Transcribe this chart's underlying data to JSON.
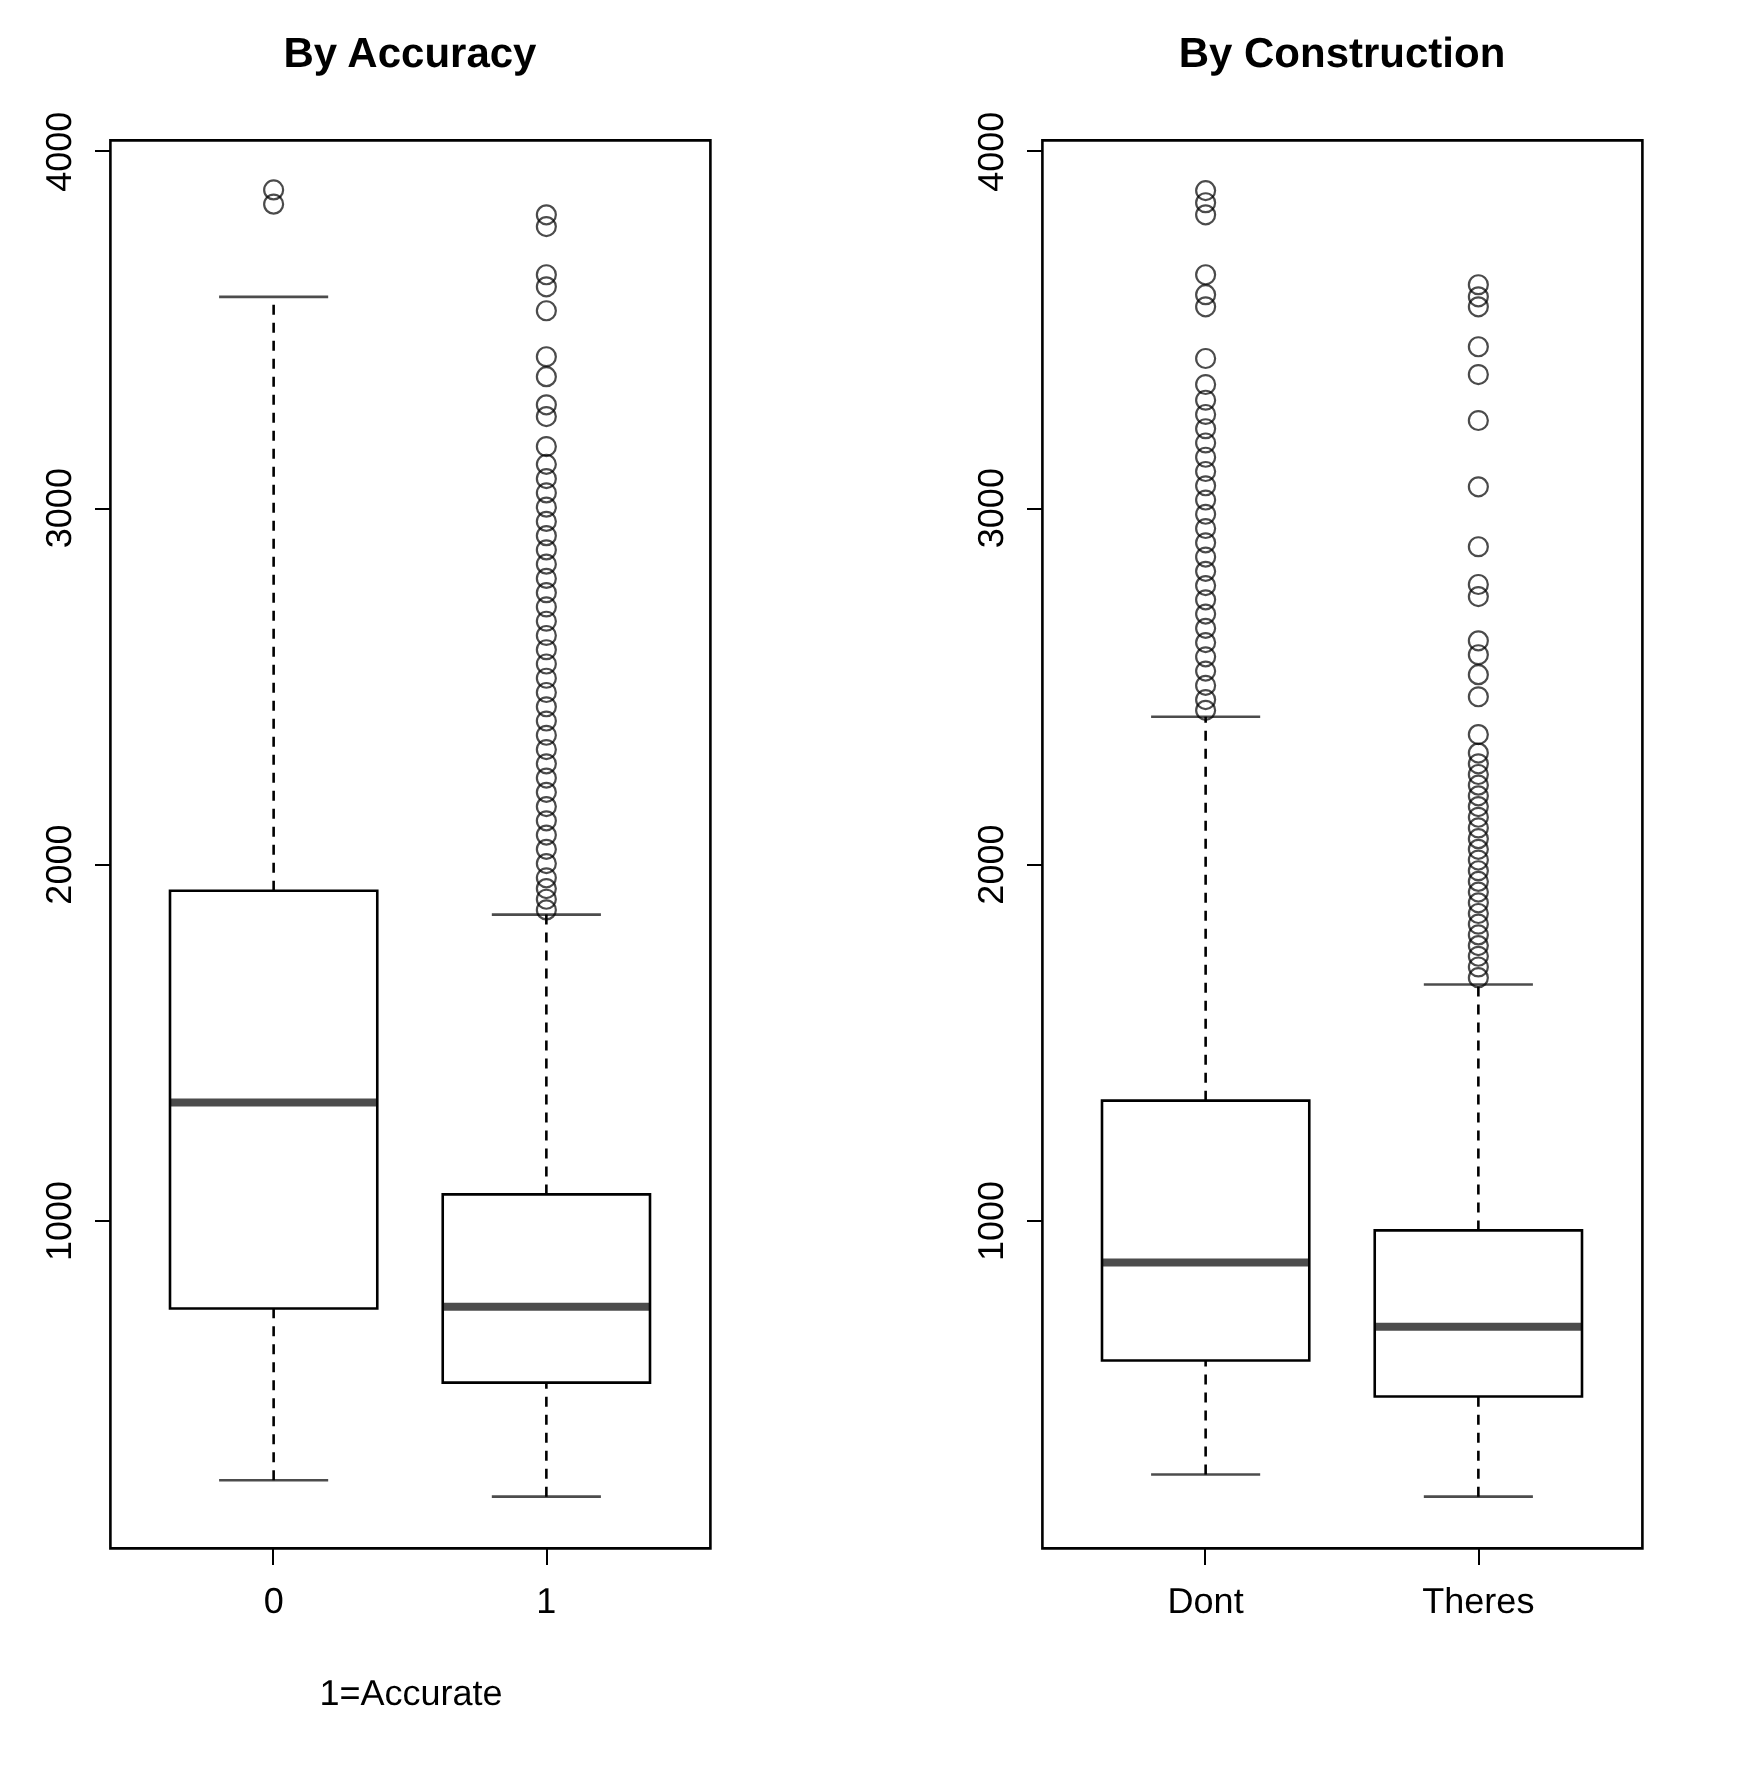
{
  "chart_data": [
    {
      "type": "box",
      "title": "By Accuracy",
      "xlabel": "1=Accurate",
      "categories": [
        "0",
        "1"
      ],
      "ylim": [
        80,
        4030
      ],
      "yticks": [
        1000,
        2000,
        3000,
        4000
      ],
      "grid": false,
      "boxes": [
        {
          "low": 270,
          "q1": 752,
          "median": 1330,
          "q3": 1924,
          "high": 3590,
          "outliers": [
            3850,
            3890
          ]
        },
        {
          "low": 224,
          "q1": 544,
          "median": 757,
          "q3": 1072,
          "high": 1857,
          "outliers": [
            1870,
            1900,
            1930,
            1960,
            2000,
            2040,
            2080,
            2120,
            2160,
            2200,
            2240,
            2280,
            2320,
            2360,
            2400,
            2440,
            2480,
            2520,
            2560,
            2600,
            2640,
            2680,
            2720,
            2760,
            2800,
            2840,
            2880,
            2920,
            2960,
            3000,
            3040,
            3080,
            3120,
            3170,
            3254,
            3287,
            3366,
            3422,
            3551,
            3618,
            3652,
            3787,
            3820
          ]
        }
      ]
    },
    {
      "type": "box",
      "title": "By Construction",
      "categories": [
        "Dont",
        "Theres"
      ],
      "ylim": [
        80,
        4030
      ],
      "yticks": [
        1000,
        2000,
        3000,
        4000
      ],
      "grid": false,
      "boxes": [
        {
          "low": 286,
          "q1": 606,
          "median": 881,
          "q3": 1335,
          "high": 2412,
          "outliers": [
            2430,
            2460,
            2500,
            2540,
            2580,
            2620,
            2660,
            2700,
            2740,
            2780,
            2820,
            2860,
            2900,
            2940,
            2980,
            3020,
            3060,
            3100,
            3140,
            3180,
            3220,
            3260,
            3300,
            3344,
            3417,
            3562,
            3596,
            3652,
            3820,
            3854,
            3888
          ]
        },
        {
          "low": 224,
          "q1": 505,
          "median": 701,
          "q3": 971,
          "high": 1661,
          "outliers": [
            1680,
            1710,
            1740,
            1770,
            1800,
            1830,
            1860,
            1890,
            1920,
            1950,
            1980,
            2010,
            2040,
            2070,
            2100,
            2130,
            2160,
            2190,
            2220,
            2250,
            2280,
            2310,
            2362,
            2468,
            2530,
            2586,
            2625,
            2749,
            2783,
            2889,
            3057,
            3243,
            3372,
            3450,
            3562,
            3590,
            3624
          ]
        }
      ]
    }
  ]
}
